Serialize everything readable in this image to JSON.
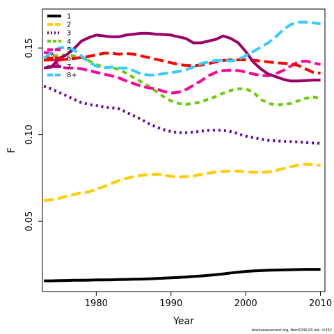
{
  "chart_data": {
    "type": "line",
    "xlabel": "Year",
    "ylabel": "F",
    "xlim": [
      1972.8,
      2010.6
    ],
    "ylim": [
      0.0095,
      0.1725
    ],
    "xticks": [
      1980,
      1990,
      2000,
      2010
    ],
    "yticks": [
      0.05,
      0.1,
      0.15
    ],
    "ytick_labels": [
      "0.05",
      "0.10",
      "0.15"
    ],
    "legend_position": "top-left",
    "grid": false,
    "x": [
      1973,
      1974,
      1975,
      1976,
      1977,
      1978,
      1979,
      1980,
      1981,
      1982,
      1983,
      1984,
      1985,
      1986,
      1987,
      1988,
      1989,
      1990,
      1991,
      1992,
      1993,
      1994,
      1995,
      1996,
      1997,
      1998,
      1999,
      2000,
      2001,
      2002,
      2003,
      2004,
      2005,
      2006,
      2007,
      2008,
      2009,
      2010
    ],
    "series": [
      {
        "name": "1",
        "color": "#000000",
        "dash": "solid",
        "values": [
          0.0157,
          0.0157,
          0.0158,
          0.0159,
          0.016,
          0.016,
          0.0161,
          0.0162,
          0.0162,
          0.0163,
          0.0164,
          0.0165,
          0.0166,
          0.0167,
          0.0168,
          0.017,
          0.0172,
          0.0174,
          0.0176,
          0.0179,
          0.0182,
          0.0185,
          0.0188,
          0.0192,
          0.0197,
          0.0202,
          0.0207,
          0.0211,
          0.0214,
          0.0216,
          0.0218,
          0.0219,
          0.022,
          0.0221,
          0.0222,
          0.0223,
          0.0223,
          0.0223
        ]
      },
      {
        "name": "2",
        "color": "#FFCC00",
        "dash": "long",
        "values": [
          0.062,
          0.0625,
          0.0632,
          0.0645,
          0.0655,
          0.0665,
          0.067,
          0.0685,
          0.07,
          0.0718,
          0.0735,
          0.0748,
          0.0758,
          0.0765,
          0.077,
          0.0772,
          0.0768,
          0.076,
          0.0756,
          0.0758,
          0.0763,
          0.077,
          0.0778,
          0.0785,
          0.0788,
          0.079,
          0.079,
          0.0787,
          0.0783,
          0.0782,
          0.0785,
          0.0792,
          0.0805,
          0.0815,
          0.0825,
          0.083,
          0.0828,
          0.0822
        ]
      },
      {
        "name": "3",
        "color": "#660099",
        "dash": "dot",
        "values": [
          0.128,
          0.1265,
          0.1245,
          0.1225,
          0.1205,
          0.1185,
          0.1175,
          0.1168,
          0.116,
          0.1155,
          0.115,
          0.113,
          0.111,
          0.109,
          0.1065,
          0.1045,
          0.103,
          0.1018,
          0.1012,
          0.1012,
          0.1015,
          0.102,
          0.1025,
          0.1027,
          0.1025,
          0.1018,
          0.1005,
          0.0992,
          0.0983,
          0.0975,
          0.0968,
          0.0965,
          0.0962,
          0.096,
          0.0958,
          0.0955,
          0.0952,
          0.095
        ]
      },
      {
        "name": "4",
        "color": "#66CC00",
        "dash": "dash",
        "values": [
          0.1445,
          0.1452,
          0.1458,
          0.146,
          0.1455,
          0.1445,
          0.1428,
          0.1405,
          0.139,
          0.1385,
          0.1378,
          0.1355,
          0.133,
          0.1305,
          0.128,
          0.125,
          0.122,
          0.1195,
          0.118,
          0.1175,
          0.118,
          0.119,
          0.1205,
          0.122,
          0.124,
          0.1255,
          0.1265,
          0.1265,
          0.1245,
          0.1205,
          0.118,
          0.1172,
          0.1175,
          0.118,
          0.1195,
          0.121,
          0.1218,
          0.121
        ]
      },
      {
        "name": "5",
        "color": "#FF0099",
        "dash": "long",
        "values": [
          0.1475,
          0.147,
          0.139,
          0.1385,
          0.1385,
          0.138,
          0.137,
          0.136,
          0.135,
          0.134,
          0.1328,
          0.131,
          0.1295,
          0.128,
          0.127,
          0.1265,
          0.125,
          0.124,
          0.1245,
          0.126,
          0.1285,
          0.131,
          0.134,
          0.136,
          0.137,
          0.1372,
          0.137,
          0.1362,
          0.135,
          0.1342,
          0.134,
          0.1352,
          0.137,
          0.1395,
          0.142,
          0.1425,
          0.1415,
          0.1405
        ]
      },
      {
        "name": "6",
        "color": "#FF0000",
        "dash": "long",
        "values": [
          0.143,
          0.1432,
          0.143,
          0.1435,
          0.144,
          0.1445,
          0.1452,
          0.146,
          0.147,
          0.147,
          0.1465,
          0.1468,
          0.1465,
          0.1455,
          0.1445,
          0.1435,
          0.1425,
          0.1415,
          0.1405,
          0.14,
          0.1398,
          0.1402,
          0.141,
          0.142,
          0.1428,
          0.1432,
          0.1432,
          0.1432,
          0.143,
          0.1425,
          0.142,
          0.1415,
          0.1412,
          0.141,
          0.14,
          0.138,
          0.136,
          0.1355
        ]
      },
      {
        "name": "7",
        "color": "#990066",
        "dash": "solid",
        "values": [
          0.1385,
          0.139,
          0.144,
          0.146,
          0.1495,
          0.154,
          0.156,
          0.1575,
          0.157,
          0.1565,
          0.1565,
          0.1575,
          0.158,
          0.1585,
          0.1585,
          0.158,
          0.1578,
          0.1575,
          0.1565,
          0.1555,
          0.153,
          0.153,
          0.154,
          0.155,
          0.157,
          0.1555,
          0.153,
          0.148,
          0.142,
          0.138,
          0.135,
          0.1335,
          0.132,
          0.131,
          0.131,
          0.1312,
          0.1315,
          0.1315
        ]
      },
      {
        "name": "8+",
        "color": "#33CCFF",
        "dash": "long",
        "values": [
          0.144,
          0.1475,
          0.15,
          0.1505,
          0.149,
          0.1455,
          0.142,
          0.1395,
          0.1385,
          0.139,
          0.1385,
          0.1385,
          0.137,
          0.135,
          0.1345,
          0.1345,
          0.1352,
          0.1358,
          0.1365,
          0.1375,
          0.139,
          0.141,
          0.142,
          0.1428,
          0.143,
          0.1425,
          0.1435,
          0.1455,
          0.148,
          0.1505,
          0.153,
          0.1565,
          0.1605,
          0.1635,
          0.165,
          0.165,
          0.1645,
          0.164
        ]
      }
    ]
  },
  "footer": "stockassessment.org, HerrSD30 RS est, r1552"
}
